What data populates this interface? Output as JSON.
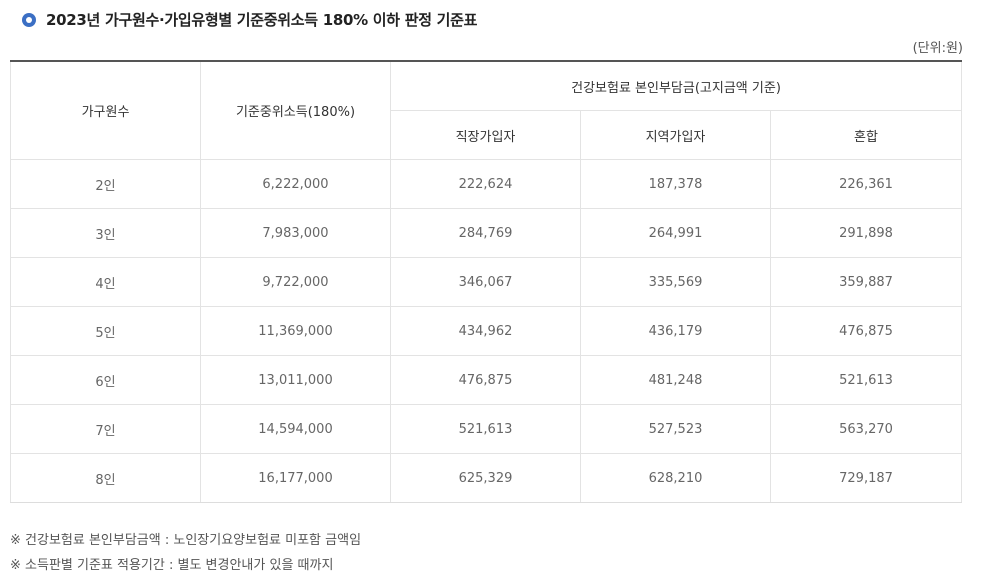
{
  "title": "2023년 가구원수·가입유형별 기준중위소득 180% 이하 판정 기준표",
  "unit": "(단위:원)",
  "table": {
    "headers": {
      "household": "가구원수",
      "median_income": "기준중위소득(180%)",
      "premium_group": "건강보험료 본인부담금(고지금액 기준)",
      "employee": "직장가입자",
      "regional": "지역가입자",
      "mixed": "혼합"
    },
    "rows": [
      {
        "household": "2인",
        "median_income": "6,222,000",
        "employee": "222,624",
        "regional": "187,378",
        "mixed": "226,361"
      },
      {
        "household": "3인",
        "median_income": "7,983,000",
        "employee": "284,769",
        "regional": "264,991",
        "mixed": "291,898"
      },
      {
        "household": "4인",
        "median_income": "9,722,000",
        "employee": "346,067",
        "regional": "335,569",
        "mixed": "359,887"
      },
      {
        "household": "5인",
        "median_income": "11,369,000",
        "employee": "434,962",
        "regional": "436,179",
        "mixed": "476,875"
      },
      {
        "household": "6인",
        "median_income": "13,011,000",
        "employee": "476,875",
        "regional": "481,248",
        "mixed": "521,613"
      },
      {
        "household": "7인",
        "median_income": "14,594,000",
        "employee": "521,613",
        "regional": "527,523",
        "mixed": "563,270"
      },
      {
        "household": "8인",
        "median_income": "16,177,000",
        "employee": "625,329",
        "regional": "628,210",
        "mixed": "729,187"
      }
    ]
  },
  "notes": [
    "※ 건강보험료 본인부담금액 : 노인장기요양보험료 미포함 금액임",
    "※ 소득판별 기준표 적용기간 : 별도 변경안내가 있을 때까지"
  ]
}
